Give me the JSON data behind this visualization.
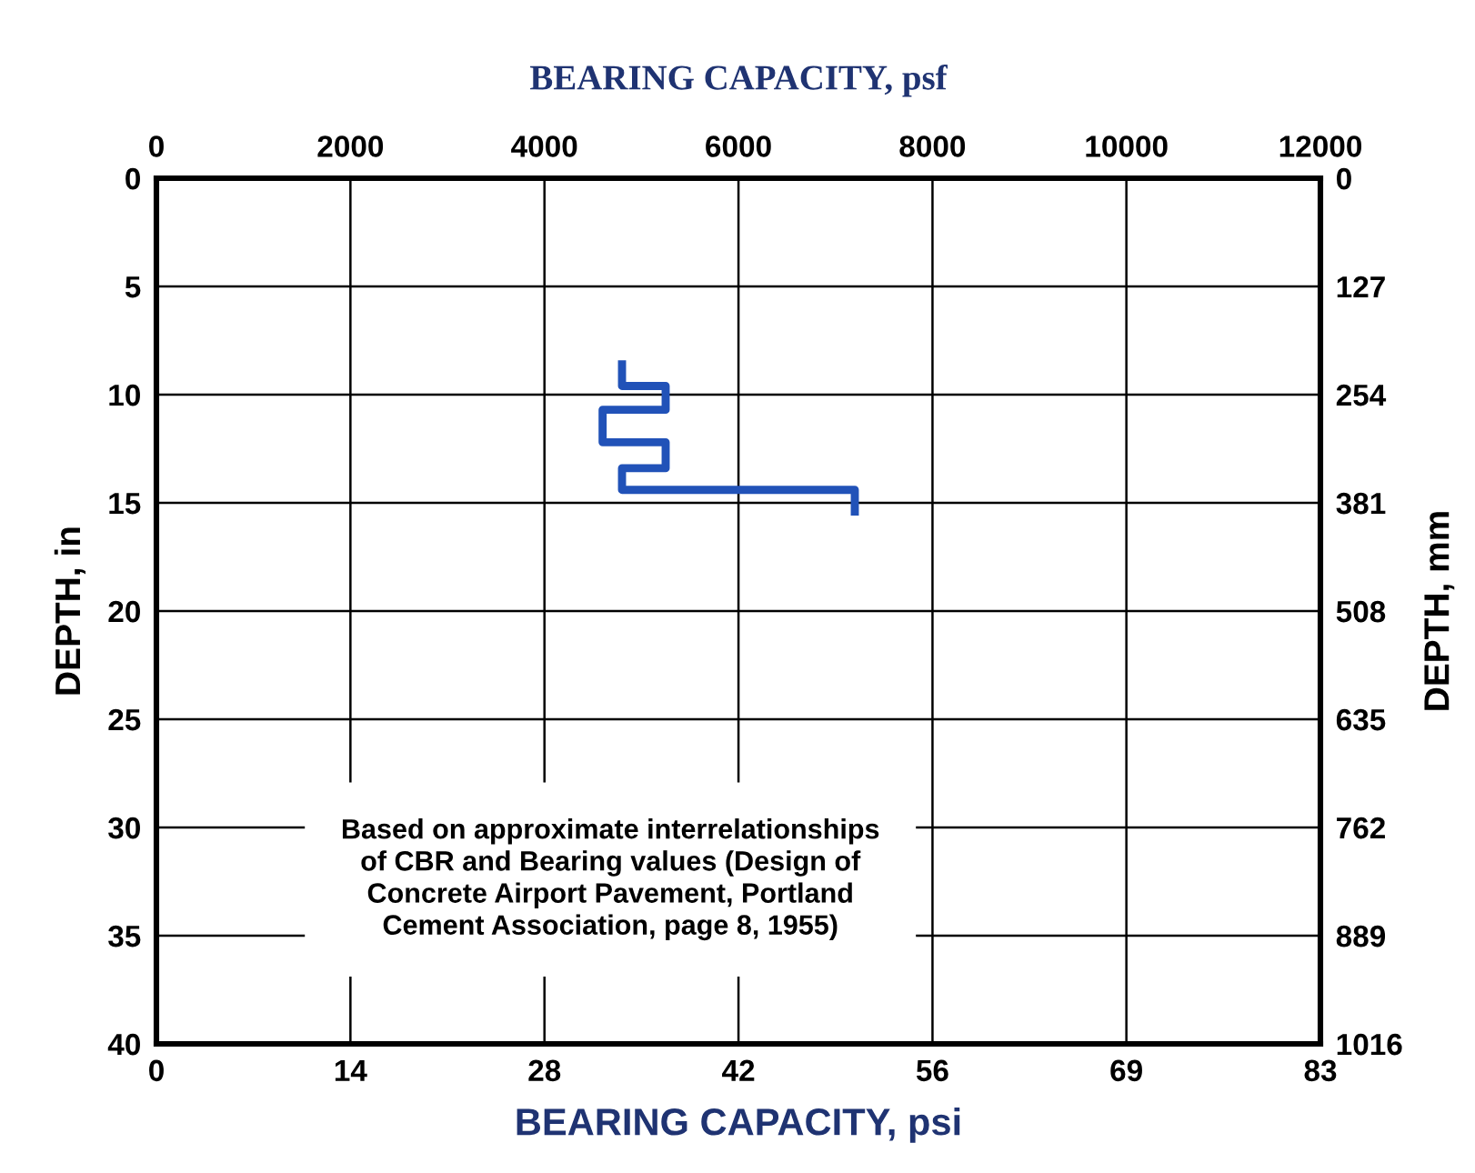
{
  "chart_data": {
    "type": "line",
    "x2label": "BEARING CAPACITY, psf",
    "xlabel": "BEARING CAPACITY, psi",
    "ylabel": "DEPTH, in",
    "y2label": "DEPTH, mm",
    "series": [
      {
        "color": "#2152b8",
        "axis": "x2",
        "x": [
          4800,
          4800,
          5250,
          5250,
          4600,
          4600,
          5250,
          5250,
          4800,
          4800,
          7200,
          7200
        ],
        "values": [
          8.6,
          9.6,
          9.6,
          10.7,
          10.7,
          12.2,
          12.2,
          13.4,
          13.4,
          14.4,
          14.4,
          15.4
        ]
      }
    ],
    "xlim": [
      0,
      83.33
    ],
    "xticks": [
      0,
      {
        "value": 13.89,
        "label": "14"
      },
      {
        "value": 27.78,
        "label": "28"
      },
      {
        "value": 41.67,
        "label": "42"
      },
      {
        "value": 55.56,
        "label": "56"
      },
      {
        "value": 69.44,
        "label": "69"
      },
      {
        "value": 83.33,
        "label": "83"
      }
    ],
    "x2lim": [
      0,
      12000
    ],
    "x2ticks": [
      0,
      2000,
      4000,
      6000,
      8000,
      10000,
      12000
    ],
    "ylim": [
      40,
      0
    ],
    "yticks": [
      0,
      5,
      10,
      15,
      20,
      25,
      30,
      35,
      40
    ],
    "y2lim": [
      1016,
      0
    ],
    "y2ticks": [
      0,
      127,
      254,
      381,
      508,
      635,
      762,
      889,
      1016
    ],
    "annotations": [
      "Based on approximate interrelationships\nof CBR and Bearing values (Design of\nConcrete Airport Pavement, Portland\nCement Association, page 8, 1955)"
    ],
    "grid": true,
    "legend": false,
    "marker": "none",
    "line_style": "solid"
  }
}
